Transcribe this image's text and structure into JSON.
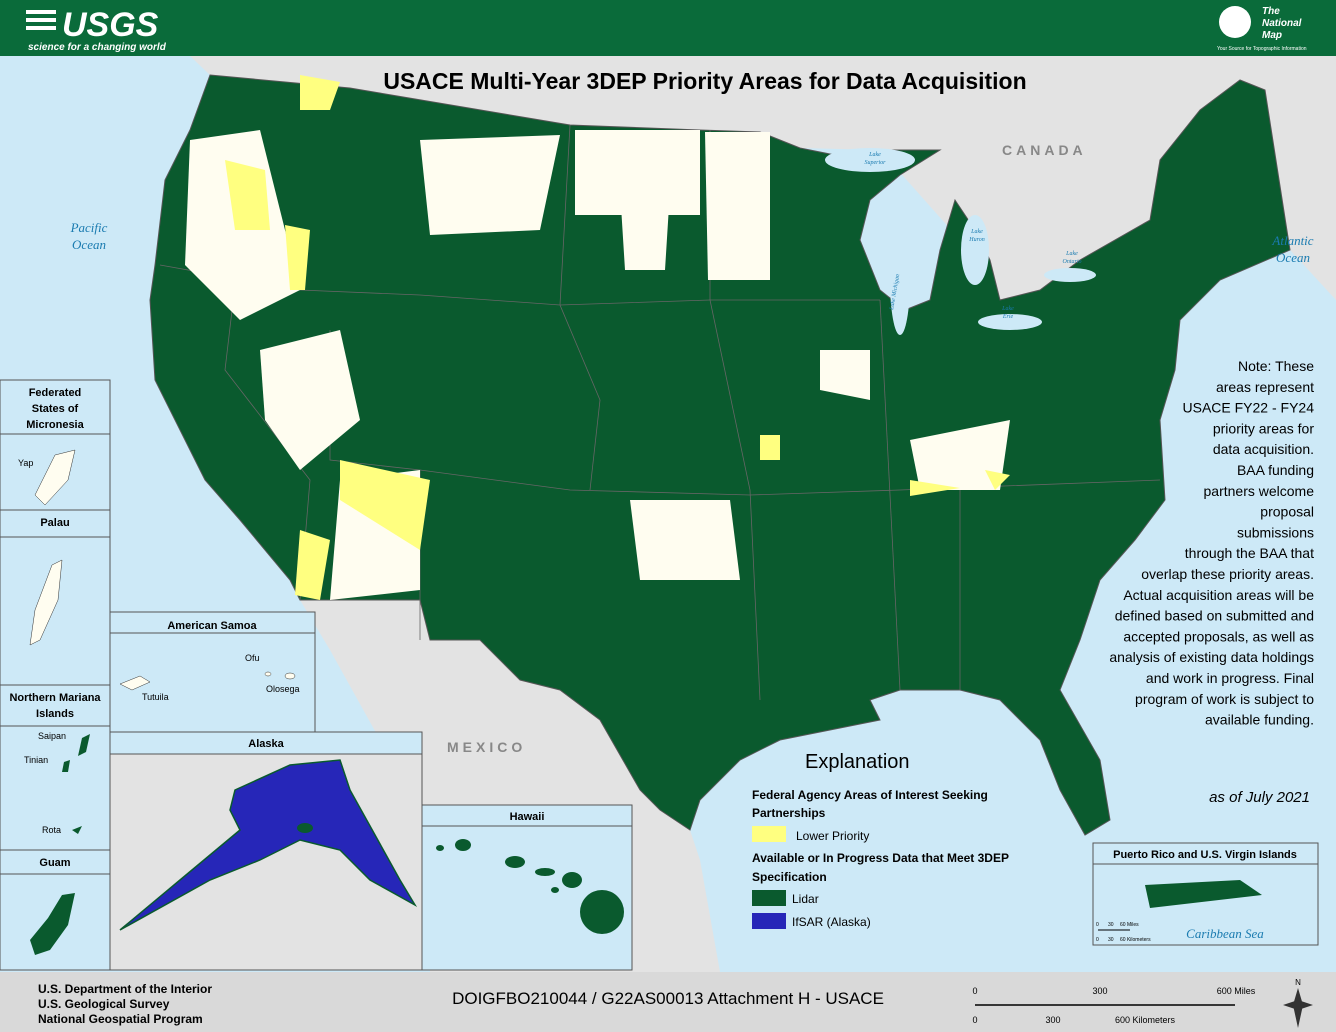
{
  "header": {
    "logo": "USGS",
    "tagline": "science for a changing world",
    "partner_logo": [
      "The",
      "National",
      "Map"
    ],
    "partner_tagline": "Your Source for Topographic Information"
  },
  "title": "USACE Multi-Year 3DEP Priority Areas for Data Acquisition",
  "map_labels": {
    "canada": "CANADA",
    "mexico": "MEXICO",
    "pacific": [
      "Pacific",
      "Ocean"
    ],
    "atlantic": [
      "Atlantic",
      "Ocean"
    ],
    "lake_superior": [
      "Lake",
      "Superior"
    ],
    "lake_huron": [
      "Lake",
      "Huron"
    ],
    "lake_michigan": "Lake Michigan",
    "lake_ontario": [
      "Lake",
      "Ontario"
    ],
    "lake_erie": [
      "Lake",
      "Erie"
    ]
  },
  "note": [
    "Note: These",
    "areas represent",
    "USACE FY22 - FY24",
    "priority areas for",
    "data acquisition.",
    "BAA funding",
    "partners welcome",
    "proposal",
    "submissions",
    "through the BAA that",
    "overlap these priority areas.",
    "Actual acquisition areas will be",
    "defined based on submitted and",
    "accepted proposals, as well as",
    "analysis of existing data holdings",
    "and work in progress. Final",
    "program of work is subject to",
    "available funding."
  ],
  "as_of": "as of July 2021",
  "legend": {
    "title": "Explanation",
    "group1": [
      "Federal Agency Areas of Interest Seeking",
      "Partnerships"
    ],
    "lower_priority": "Lower Priority",
    "group2": [
      "Available or In Progress Data that Meet 3DEP",
      "Specification"
    ],
    "lidar": "Lidar",
    "ifsar": "IfSAR (Alaska)"
  },
  "insets": {
    "micronesia": {
      "title": [
        "Federated",
        "States of",
        "Micronesia"
      ],
      "places": [
        "Yap"
      ]
    },
    "palau": {
      "title": "Palau"
    },
    "american_samoa": {
      "title": "American Samoa",
      "places": [
        "Ofu",
        "Olosega",
        "Tutuila"
      ]
    },
    "mariana": {
      "title": [
        "Northern Mariana",
        "Islands"
      ],
      "places": [
        "Saipan",
        "Tinian",
        "Rota"
      ]
    },
    "guam": {
      "title": "Guam"
    },
    "alaska": {
      "title": "Alaska"
    },
    "hawaii": {
      "title": "Hawaii"
    },
    "puerto_rico": {
      "title": "Puerto Rico and U.S. Virgin Islands",
      "sea": "Caribbean Sea",
      "scale_miles": [
        "0",
        "30",
        "60 Miles"
      ],
      "scale_km": [
        "0",
        "30",
        "60 Kilometers"
      ]
    }
  },
  "footer": {
    "agency": [
      "U.S. Department of the Interior",
      "U.S. Geological Survey",
      "National Geospatial Program"
    ],
    "document_id": "DOIGFBO210044 / G22AS00013 Attachment H - USACE",
    "scale_miles": [
      "0",
      "300",
      "600 Miles"
    ],
    "scale_km": [
      "0",
      "300",
      "600 Kilometers"
    ],
    "north": "N"
  }
}
